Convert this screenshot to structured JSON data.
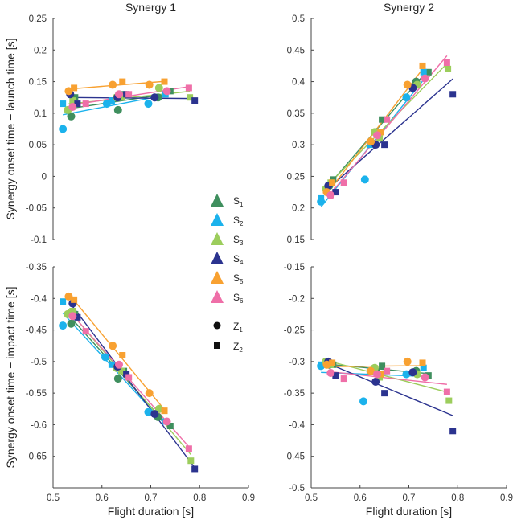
{
  "chart_data": {
    "type": "scatter",
    "legend": {
      "placement": "center-right of left column",
      "subjects": [
        "S1",
        "S2",
        "S3",
        "S4",
        "S5",
        "S6"
      ],
      "markers": [
        {
          "label": "Z1",
          "shape": "circle"
        },
        {
          "label": "Z2",
          "shape": "square"
        }
      ]
    },
    "colors": {
      "S1": "#3f8f5e",
      "S2": "#1bb2ec",
      "S3": "#9ccd5c",
      "S4": "#2b338f",
      "S5": "#f8a131",
      "S6": "#ef6fa8"
    },
    "xlabel": "Flight duration [s]",
    "xlim": [
      0.5,
      0.9
    ],
    "xticks": [
      "0.5",
      "0.6",
      "0.7",
      "0.8",
      "0.9"
    ],
    "panels": [
      {
        "title": "Synergy 1",
        "ylabel": "Synergy onset time − launch time [s]",
        "ylim": [
          -0.1,
          0.25
        ],
        "yticks": [
          "0.25",
          "0.2",
          "0.15",
          "0.1",
          "0.05",
          "0",
          "-0.05",
          "-0.1"
        ],
        "series": {
          "S1": {
            "Z1": [
              [
                0.537,
                0.095
              ],
              [
                0.633,
                0.105
              ],
              [
                0.715,
                0.125
              ]
            ],
            "Z2": [
              [
                0.545,
                0.125
              ],
              [
                0.645,
                0.13
              ],
              [
                0.74,
                0.135
              ]
            ]
          },
          "S2": {
            "Z1": [
              [
                0.52,
                0.075
              ],
              [
                0.61,
                0.115
              ],
              [
                0.695,
                0.115
              ]
            ],
            "Z2": [
              [
                0.52,
                0.115
              ],
              [
                0.62,
                0.12
              ],
              [
                0.73,
                0.13
              ]
            ]
          },
          "S3": {
            "Z1": [
              [
                0.53,
                0.105
              ],
              [
                0.63,
                0.125
              ],
              [
                0.717,
                0.14
              ]
            ],
            "Z2": [
              [
                0.54,
                0.12
              ],
              [
                0.64,
                0.125
              ],
              [
                0.78,
                0.125
              ]
            ]
          },
          "S4": {
            "Z1": [
              [
                0.535,
                0.13
              ],
              [
                0.632,
                0.125
              ],
              [
                0.708,
                0.125
              ]
            ],
            "Z2": [
              [
                0.55,
                0.115
              ],
              [
                0.65,
                0.13
              ],
              [
                0.79,
                0.12
              ]
            ]
          },
          "S5": {
            "Z1": [
              [
                0.532,
                0.135
              ],
              [
                0.622,
                0.145
              ],
              [
                0.697,
                0.145
              ]
            ],
            "Z2": [
              [
                0.543,
                0.14
              ],
              [
                0.642,
                0.15
              ],
              [
                0.728,
                0.15
              ]
            ]
          },
          "S6": {
            "Z1": [
              [
                0.54,
                0.11
              ],
              [
                0.635,
                0.13
              ],
              [
                0.733,
                0.135
              ]
            ],
            "Z2": [
              [
                0.567,
                0.115
              ],
              [
                0.655,
                0.13
              ],
              [
                0.778,
                0.14
              ]
            ]
          }
        }
      },
      {
        "title": "Synergy 2",
        "ylabel": "",
        "ylim": [
          0.15,
          0.5
        ],
        "yticks": [
          "0.5",
          "0.45",
          "0.4",
          "0.35",
          "0.3",
          "0.25",
          "0.2",
          "0.15"
        ],
        "series": {
          "S1": {
            "Z1": [
              [
                0.537,
                0.235
              ],
              [
                0.633,
                0.32
              ],
              [
                0.715,
                0.4
              ]
            ],
            "Z2": [
              [
                0.545,
                0.245
              ],
              [
                0.645,
                0.34
              ],
              [
                0.74,
                0.415
              ]
            ]
          },
          "S2": {
            "Z1": [
              [
                0.52,
                0.21
              ],
              [
                0.61,
                0.245
              ],
              [
                0.695,
                0.375
              ]
            ],
            "Z2": [
              [
                0.52,
                0.215
              ],
              [
                0.62,
                0.3
              ],
              [
                0.73,
                0.415
              ]
            ]
          },
          "S3": {
            "Z1": [
              [
                0.53,
                0.23
              ],
              [
                0.63,
                0.32
              ],
              [
                0.717,
                0.395
              ]
            ],
            "Z2": [
              [
                0.54,
                0.24
              ],
              [
                0.64,
                0.31
              ],
              [
                0.78,
                0.42
              ]
            ]
          },
          "S4": {
            "Z1": [
              [
                0.535,
                0.235
              ],
              [
                0.632,
                0.3
              ],
              [
                0.708,
                0.39
              ]
            ],
            "Z2": [
              [
                0.55,
                0.225
              ],
              [
                0.65,
                0.3
              ],
              [
                0.79,
                0.38
              ]
            ]
          },
          "S5": {
            "Z1": [
              [
                0.532,
                0.225
              ],
              [
                0.622,
                0.305
              ],
              [
                0.697,
                0.395
              ]
            ],
            "Z2": [
              [
                0.543,
                0.24
              ],
              [
                0.642,
                0.32
              ],
              [
                0.728,
                0.425
              ]
            ]
          },
          "S6": {
            "Z1": [
              [
                0.54,
                0.22
              ],
              [
                0.635,
                0.315
              ],
              [
                0.733,
                0.405
              ]
            ],
            "Z2": [
              [
                0.567,
                0.24
              ],
              [
                0.655,
                0.34
              ],
              [
                0.778,
                0.43
              ]
            ]
          }
        }
      },
      {
        "title": "",
        "ylabel": "Synergy onset time − impact time [s]",
        "ylim": [
          -0.7,
          -0.35
        ],
        "yticks": [
          "-0.35",
          "-0.4",
          "-0.45",
          "-0.5",
          "-0.55",
          "-0.6",
          "-0.65",
          ""
        ],
        "series": {
          "S1": {
            "Z1": [
              [
                0.537,
                -0.44
              ],
              [
                0.633,
                -0.527
              ],
              [
                0.715,
                -0.588
              ]
            ],
            "Z2": [
              [
                0.545,
                -0.425
              ],
              [
                0.645,
                -0.515
              ],
              [
                0.74,
                -0.602
              ]
            ]
          },
          "S2": {
            "Z1": [
              [
                0.52,
                -0.443
              ],
              [
                0.607,
                -0.493
              ],
              [
                0.695,
                -0.58
              ]
            ],
            "Z2": [
              [
                0.52,
                -0.405
              ],
              [
                0.62,
                -0.505
              ],
              [
                0.73,
                -0.595
              ]
            ]
          },
          "S3": {
            "Z1": [
              [
                0.53,
                -0.425
              ],
              [
                0.63,
                -0.51
              ],
              [
                0.717,
                -0.575
              ]
            ],
            "Z2": [
              [
                0.54,
                -0.42
              ],
              [
                0.64,
                -0.515
              ],
              [
                0.782,
                -0.657
              ]
            ]
          },
          "S4": {
            "Z1": [
              [
                0.54,
                -0.408
              ],
              [
                0.632,
                -0.508
              ],
              [
                0.708,
                -0.583
              ]
            ],
            "Z2": [
              [
                0.55,
                -0.43
              ],
              [
                0.65,
                -0.52
              ],
              [
                0.79,
                -0.67
              ]
            ]
          },
          "S5": {
            "Z1": [
              [
                0.532,
                -0.397
              ],
              [
                0.622,
                -0.475
              ],
              [
                0.697,
                -0.55
              ]
            ],
            "Z2": [
              [
                0.543,
                -0.402
              ],
              [
                0.642,
                -0.49
              ],
              [
                0.728,
                -0.578
              ]
            ]
          },
          "S6": {
            "Z1": [
              [
                0.54,
                -0.428
              ],
              [
                0.635,
                -0.505
              ],
              [
                0.733,
                -0.595
              ]
            ],
            "Z2": [
              [
                0.567,
                -0.452
              ],
              [
                0.655,
                -0.525
              ],
              [
                0.778,
                -0.638
              ]
            ]
          }
        }
      },
      {
        "title": "",
        "ylabel": "",
        "ylim": [
          -0.5,
          -0.15
        ],
        "yticks": [
          "-0.15",
          "-0.2",
          "-0.25",
          "-0.3",
          "-0.35",
          "-0.4",
          "-0.45",
          "-0.5"
        ],
        "series": {
          "S1": {
            "Z1": [
              [
                0.537,
                -0.305
              ],
              [
                0.633,
                -0.315
              ],
              [
                0.715,
                -0.315
              ]
            ],
            "Z2": [
              [
                0.545,
                -0.305
              ],
              [
                0.645,
                -0.307
              ],
              [
                0.74,
                -0.322
              ]
            ]
          },
          "S2": {
            "Z1": [
              [
                0.52,
                -0.307
              ],
              [
                0.607,
                -0.363
              ],
              [
                0.695,
                -0.32
              ]
            ],
            "Z2": [
              [
                0.52,
                -0.305
              ],
              [
                0.62,
                -0.315
              ],
              [
                0.73,
                -0.31
              ]
            ]
          },
          "S3": {
            "Z1": [
              [
                0.53,
                -0.3
              ],
              [
                0.63,
                -0.31
              ],
              [
                0.717,
                -0.32
              ]
            ],
            "Z2": [
              [
                0.54,
                -0.305
              ],
              [
                0.64,
                -0.325
              ],
              [
                0.782,
                -0.362
              ]
            ]
          },
          "S4": {
            "Z1": [
              [
                0.535,
                -0.3
              ],
              [
                0.632,
                -0.332
              ],
              [
                0.708,
                -0.317
              ]
            ],
            "Z2": [
              [
                0.55,
                -0.322
              ],
              [
                0.65,
                -0.35
              ],
              [
                0.79,
                -0.41
              ]
            ]
          },
          "S5": {
            "Z1": [
              [
                0.532,
                -0.305
              ],
              [
                0.622,
                -0.315
              ],
              [
                0.697,
                -0.3
              ]
            ],
            "Z2": [
              [
                0.543,
                -0.302
              ],
              [
                0.642,
                -0.32
              ],
              [
                0.728,
                -0.302
              ]
            ]
          },
          "S6": {
            "Z1": [
              [
                0.54,
                -0.318
              ],
              [
                0.635,
                -0.32
              ],
              [
                0.733,
                -0.325
              ]
            ],
            "Z2": [
              [
                0.567,
                -0.327
              ],
              [
                0.655,
                -0.315
              ],
              [
                0.778,
                -0.348
              ]
            ]
          }
        }
      }
    ]
  }
}
